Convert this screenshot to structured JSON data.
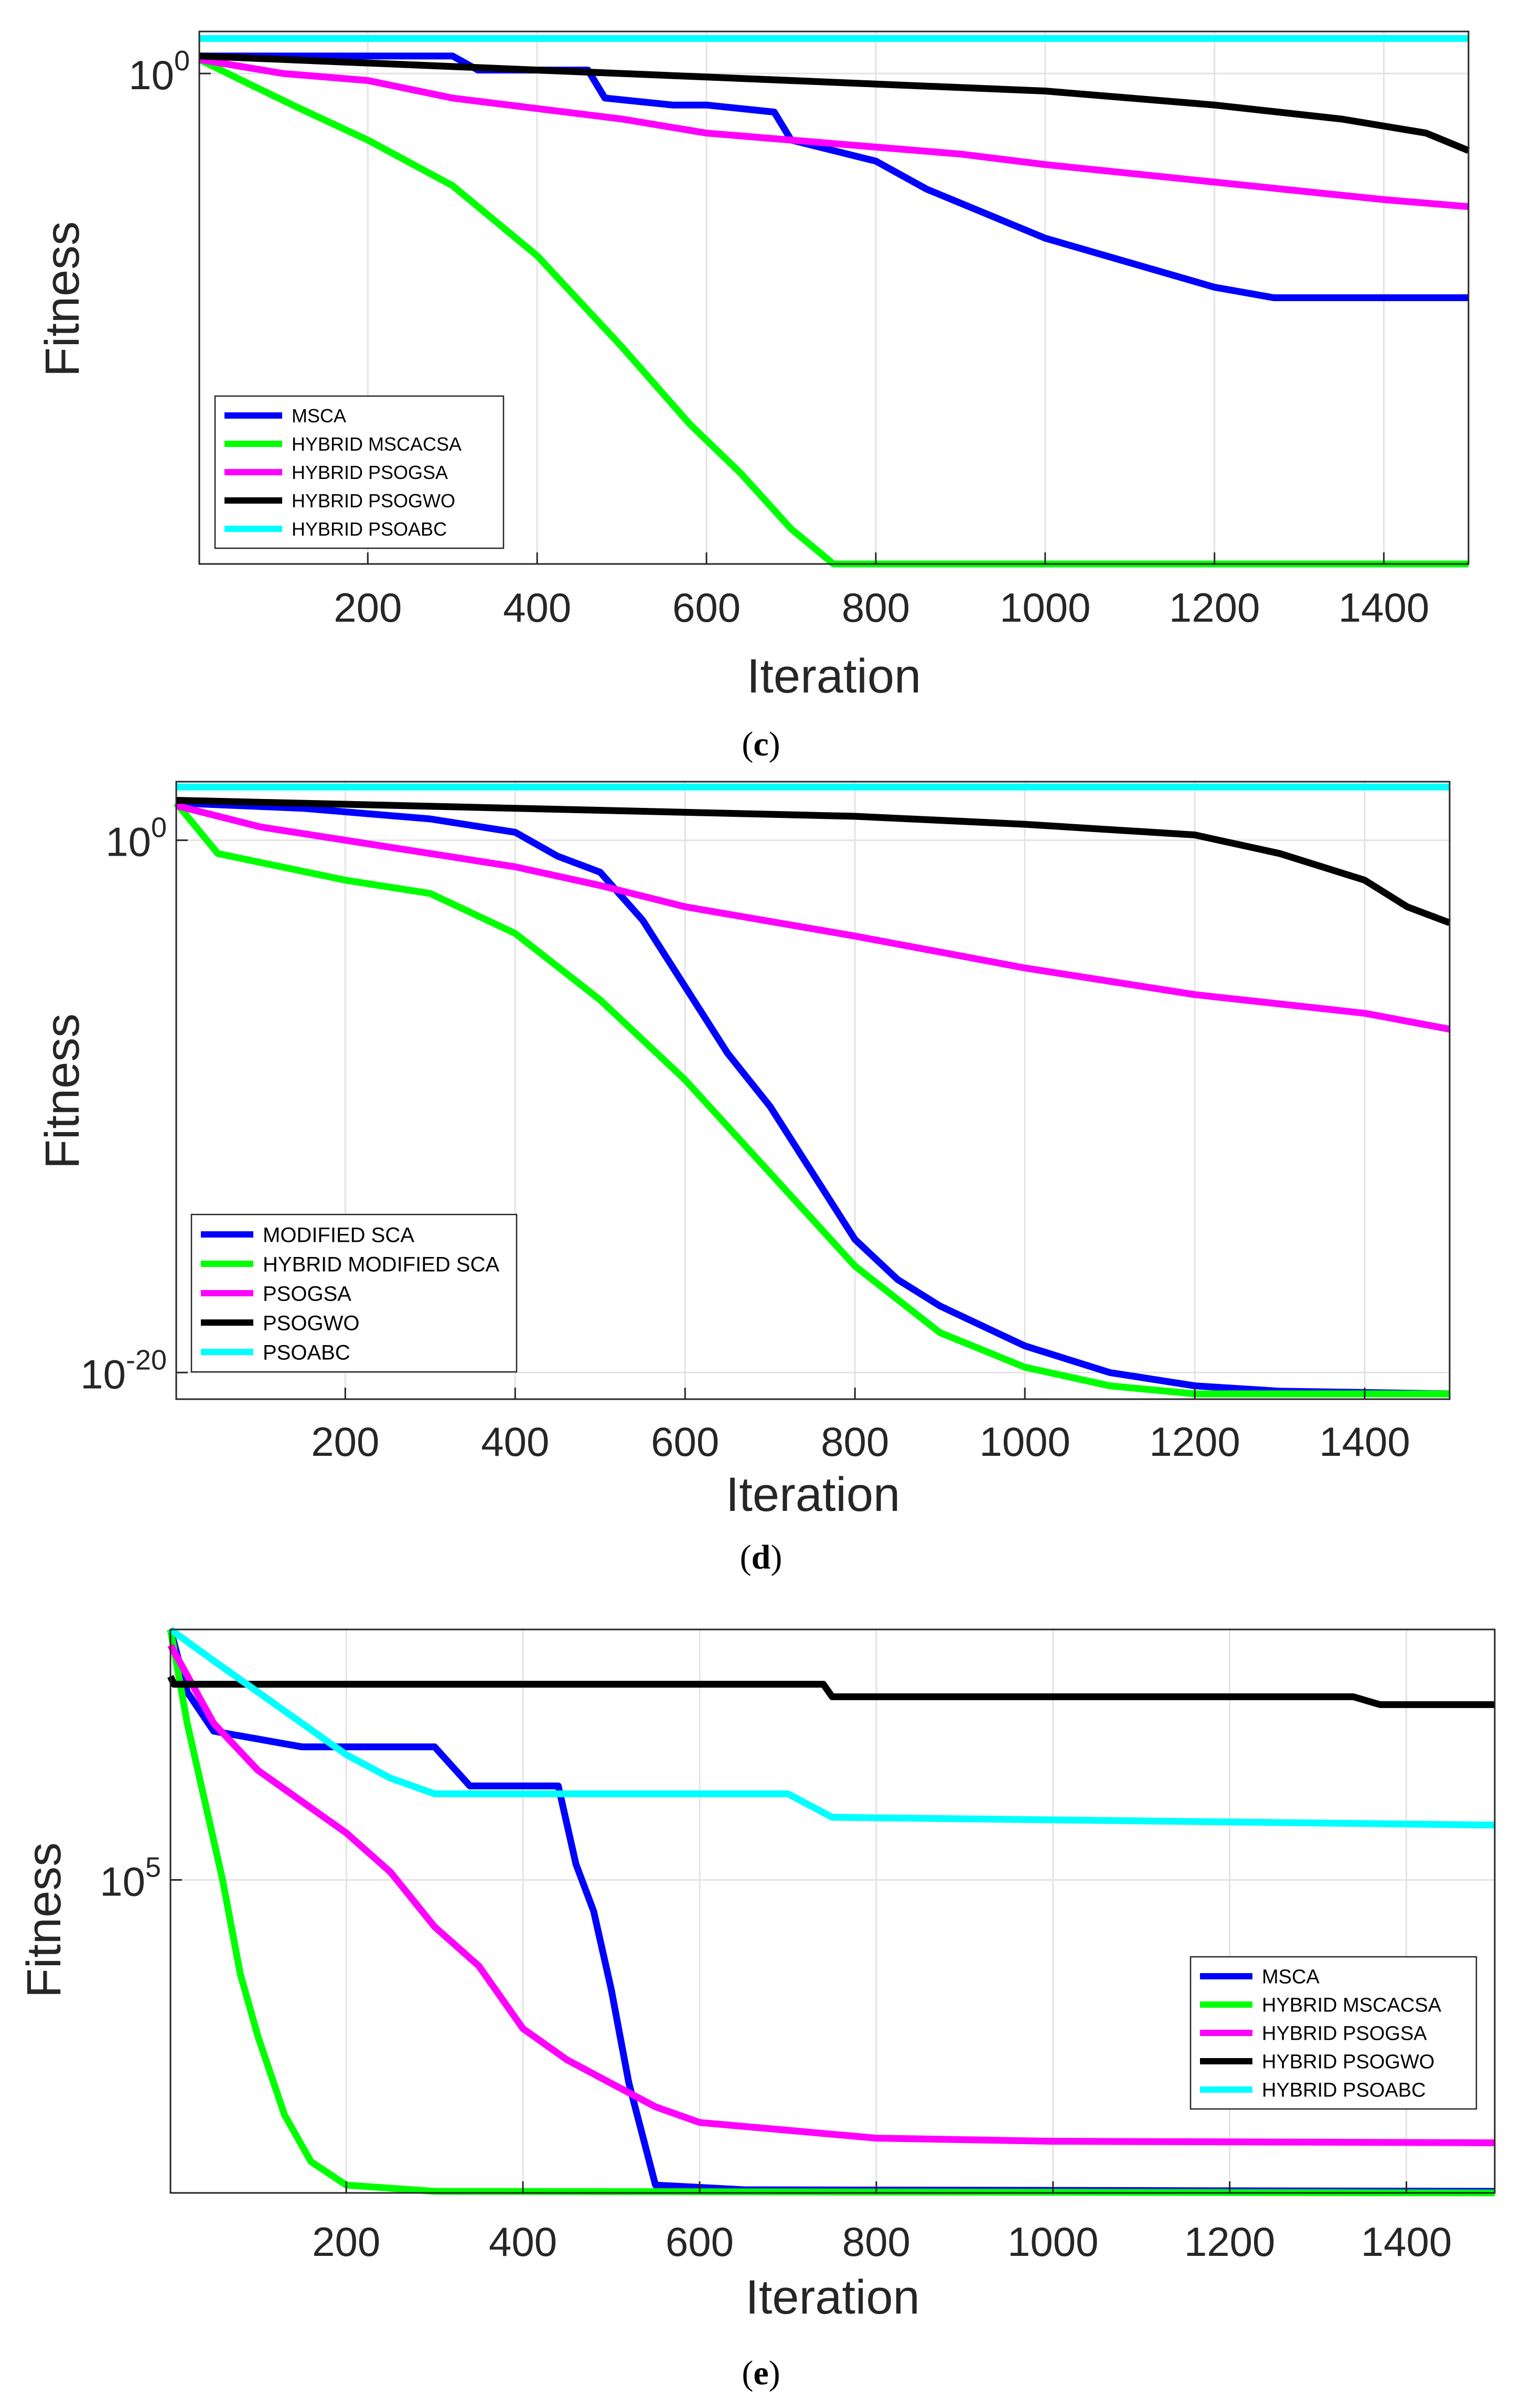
{
  "chart_data": [
    {
      "type": "line",
      "panel": "c",
      "xlabel": "Iteration",
      "ylabel": "Fitness",
      "yscale": "log",
      "xlim": [
        1,
        1500
      ],
      "ylim_exp": [
        -7,
        0.6
      ],
      "x_ticks": [
        200,
        400,
        600,
        800,
        1000,
        1200,
        1400
      ],
      "y_ticks": [
        {
          "exp": 0,
          "label": "10",
          "sup": "0"
        }
      ],
      "series": [
        {
          "name": "MSCA",
          "color": "#0000ff",
          "points": [
            [
              1,
              0.25
            ],
            [
              300,
              0.25
            ],
            [
              330,
              0.05
            ],
            [
              460,
              0.05
            ],
            [
              480,
              -0.35
            ],
            [
              560,
              -0.45
            ],
            [
              600,
              -0.45
            ],
            [
              680,
              -0.55
            ],
            [
              700,
              -0.95
            ],
            [
              800,
              -1.25
            ],
            [
              860,
              -1.65
            ],
            [
              1000,
              -2.35
            ],
            [
              1100,
              -2.7
            ],
            [
              1200,
              -3.05
            ],
            [
              1270,
              -3.2
            ],
            [
              1500,
              -3.2
            ]
          ]
        },
        {
          "name": "HYBRID MSCACSA",
          "color": "#00ff00",
          "points": [
            [
              1,
              0.2
            ],
            [
              60,
              -0.15
            ],
            [
              120,
              -0.5
            ],
            [
              200,
              -0.95
            ],
            [
              300,
              -1.6
            ],
            [
              400,
              -2.6
            ],
            [
              500,
              -3.9
            ],
            [
              580,
              -5.0
            ],
            [
              640,
              -5.7
            ],
            [
              700,
              -6.5
            ],
            [
              750,
              -7.0
            ],
            [
              1500,
              -7.0
            ]
          ]
        },
        {
          "name": "HYBRID PSOGSA",
          "color": "#ff00ff",
          "points": [
            [
              1,
              0.2
            ],
            [
              100,
              0.0
            ],
            [
              200,
              -0.1
            ],
            [
              300,
              -0.35
            ],
            [
              400,
              -0.5
            ],
            [
              500,
              -0.65
            ],
            [
              600,
              -0.85
            ],
            [
              700,
              -0.95
            ],
            [
              800,
              -1.05
            ],
            [
              900,
              -1.15
            ],
            [
              1000,
              -1.3
            ],
            [
              1200,
              -1.55
            ],
            [
              1400,
              -1.8
            ],
            [
              1500,
              -1.9
            ]
          ]
        },
        {
          "name": "HYBRID PSOGWO",
          "color": "#000000",
          "points": [
            [
              1,
              0.25
            ],
            [
              200,
              0.15
            ],
            [
              400,
              0.05
            ],
            [
              600,
              -0.05
            ],
            [
              800,
              -0.15
            ],
            [
              1000,
              -0.25
            ],
            [
              1200,
              -0.45
            ],
            [
              1350,
              -0.65
            ],
            [
              1450,
              -0.85
            ],
            [
              1500,
              -1.1
            ]
          ]
        },
        {
          "name": "HYBRID PSOABC",
          "color": "#00ffff",
          "points": [
            [
              1,
              0.5
            ],
            [
              1500,
              0.5
            ]
          ]
        }
      ]
    },
    {
      "type": "line",
      "panel": "d",
      "xlabel": "Iteration",
      "ylabel": "Fitness",
      "yscale": "log",
      "xlim": [
        1,
        1500
      ],
      "ylim_exp": [
        -21,
        2.2
      ],
      "x_ticks": [
        200,
        400,
        600,
        800,
        1000,
        1200,
        1400
      ],
      "y_ticks": [
        {
          "exp": 0,
          "label": "10",
          "sup": "0"
        },
        {
          "exp": -20,
          "label": "10",
          "sup": "-20"
        }
      ],
      "series": [
        {
          "name": "MODIFIED SCA",
          "color": "#0000ff",
          "points": [
            [
              1,
              1.4
            ],
            [
              150,
              1.2
            ],
            [
              300,
              0.8
            ],
            [
              400,
              0.3
            ],
            [
              450,
              -0.6
            ],
            [
              500,
              -1.2
            ],
            [
              550,
              -3.0
            ],
            [
              600,
              -5.5
            ],
            [
              650,
              -8.0
            ],
            [
              700,
              -10.0
            ],
            [
              750,
              -12.5
            ],
            [
              800,
              -15.0
            ],
            [
              850,
              -16.5
            ],
            [
              900,
              -17.5
            ],
            [
              1000,
              -19.0
            ],
            [
              1100,
              -20.0
            ],
            [
              1200,
              -20.5
            ],
            [
              1300,
              -20.7
            ],
            [
              1500,
              -20.8
            ]
          ]
        },
        {
          "name": "HYBRID MODIFIED SCA",
          "color": "#00ff00",
          "points": [
            [
              1,
              1.4
            ],
            [
              50,
              -0.5
            ],
            [
              200,
              -1.5
            ],
            [
              300,
              -2.0
            ],
            [
              400,
              -3.5
            ],
            [
              500,
              -6.0
            ],
            [
              600,
              -9.0
            ],
            [
              700,
              -12.5
            ],
            [
              800,
              -16.0
            ],
            [
              900,
              -18.5
            ],
            [
              1000,
              -19.8
            ],
            [
              1100,
              -20.5
            ],
            [
              1200,
              -20.8
            ],
            [
              1500,
              -20.8
            ]
          ]
        },
        {
          "name": "PSOGSA",
          "color": "#ff00ff",
          "points": [
            [
              1,
              1.3
            ],
            [
              100,
              0.5
            ],
            [
              200,
              0.0
            ],
            [
              400,
              -1.0
            ],
            [
              500,
              -1.7
            ],
            [
              600,
              -2.5
            ],
            [
              800,
              -3.6
            ],
            [
              1000,
              -4.8
            ],
            [
              1200,
              -5.8
            ],
            [
              1400,
              -6.5
            ],
            [
              1500,
              -7.1
            ]
          ]
        },
        {
          "name": "PSOGWO",
          "color": "#000000",
          "points": [
            [
              1,
              1.5
            ],
            [
              400,
              1.2
            ],
            [
              800,
              0.9
            ],
            [
              1000,
              0.6
            ],
            [
              1200,
              0.2
            ],
            [
              1300,
              -0.5
            ],
            [
              1400,
              -1.5
            ],
            [
              1450,
              -2.5
            ],
            [
              1500,
              -3.1
            ]
          ]
        },
        {
          "name": "PSOABC",
          "color": "#00ffff",
          "points": [
            [
              1,
              2.0
            ],
            [
              1500,
              2.0
            ]
          ]
        }
      ]
    },
    {
      "type": "line",
      "panel": "e",
      "xlabel": "Iteration",
      "ylabel": "Fitness",
      "yscale": "log",
      "xlim": [
        1,
        1500
      ],
      "ylim_exp": [
        3.0,
        6.6
      ],
      "x_ticks": [
        200,
        400,
        600,
        800,
        1000,
        1200,
        1400
      ],
      "y_ticks": [
        {
          "exp": 5,
          "label": "10",
          "sup": "5"
        }
      ],
      "series": [
        {
          "name": "MSCA",
          "color": "#0000ff",
          "points": [
            [
              1,
              6.6
            ],
            [
              20,
              6.2
            ],
            [
              50,
              5.95
            ],
            [
              150,
              5.85
            ],
            [
              300,
              5.85
            ],
            [
              340,
              5.6
            ],
            [
              440,
              5.6
            ],
            [
              460,
              5.1
            ],
            [
              480,
              4.8
            ],
            [
              500,
              4.3
            ],
            [
              520,
              3.7
            ],
            [
              550,
              3.05
            ],
            [
              650,
              3.02
            ],
            [
              1500,
              3.01
            ]
          ]
        },
        {
          "name": "HYBRID MSCACSA",
          "color": "#00ff00",
          "points": [
            [
              1,
              6.6
            ],
            [
              20,
              6.0
            ],
            [
              40,
              5.5
            ],
            [
              60,
              5.0
            ],
            [
              80,
              4.4
            ],
            [
              100,
              4.0
            ],
            [
              130,
              3.5
            ],
            [
              160,
              3.2
            ],
            [
              200,
              3.05
            ],
            [
              300,
              3.01
            ],
            [
              1500,
              3.0
            ]
          ]
        },
        {
          "name": "HYBRID PSOGSA",
          "color": "#ff00ff",
          "points": [
            [
              1,
              6.5
            ],
            [
              50,
              6.0
            ],
            [
              100,
              5.7
            ],
            [
              150,
              5.5
            ],
            [
              200,
              5.3
            ],
            [
              250,
              5.05
            ],
            [
              300,
              4.7
            ],
            [
              350,
              4.45
            ],
            [
              400,
              4.05
            ],
            [
              450,
              3.85
            ],
            [
              500,
              3.7
            ],
            [
              550,
              3.55
            ],
            [
              600,
              3.45
            ],
            [
              800,
              3.35
            ],
            [
              1000,
              3.33
            ],
            [
              1500,
              3.32
            ]
          ]
        },
        {
          "name": "HYBRID PSOGWO",
          "color": "#000000",
          "points": [
            [
              1,
              6.3
            ],
            [
              5,
              6.25
            ],
            [
              740,
              6.25
            ],
            [
              750,
              6.17
            ],
            [
              1340,
              6.17
            ],
            [
              1370,
              6.12
            ],
            [
              1500,
              6.12
            ]
          ]
        },
        {
          "name": "HYBRID PSOABC",
          "color": "#00ffff",
          "points": [
            [
              1,
              6.6
            ],
            [
              50,
              6.4
            ],
            [
              100,
              6.2
            ],
            [
              150,
              6.0
            ],
            [
              200,
              5.8
            ],
            [
              250,
              5.65
            ],
            [
              300,
              5.55
            ],
            [
              350,
              5.55
            ],
            [
              700,
              5.55
            ],
            [
              750,
              5.4
            ],
            [
              1500,
              5.35
            ]
          ]
        }
      ]
    }
  ]
}
